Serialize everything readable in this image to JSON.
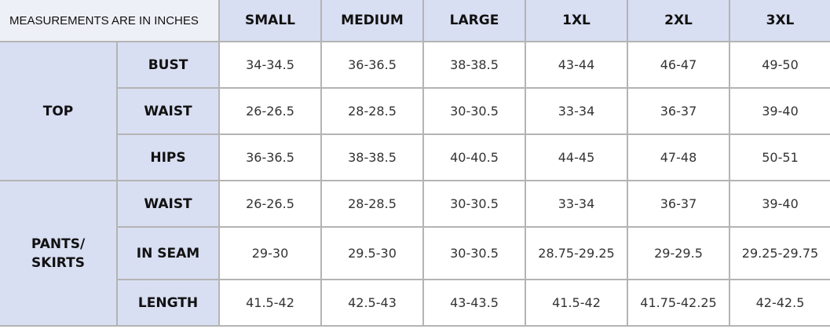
{
  "table": {
    "corner_label": "MEASUREMENTS ARE IN INCHES",
    "sizes": [
      "SMALL",
      "MEDIUM",
      "LARGE",
      "1XL",
      "2XL",
      "3XL"
    ],
    "groups": [
      {
        "name": "TOP",
        "rows": [
          {
            "label": "BUST",
            "values": [
              "34-34.5",
              "36-36.5",
              "38-38.5",
              "43-44",
              "46-47",
              "49-50"
            ]
          },
          {
            "label": "WAIST",
            "values": [
              "26-26.5",
              "28-28.5",
              "30-30.5",
              "33-34",
              "36-37",
              "39-40"
            ]
          },
          {
            "label": "HIPS",
            "values": [
              "36-36.5",
              "38-38.5",
              "40-40.5",
              "44-45",
              "47-48",
              "50-51"
            ]
          }
        ]
      },
      {
        "name": "PANTS/ SKIRTS",
        "name_lines": [
          "PANTS/",
          "SKIRTS"
        ],
        "rows": [
          {
            "label": "WAIST",
            "values": [
              "26-26.5",
              "28-28.5",
              "30-30.5",
              "33-34",
              "36-37",
              "39-40"
            ]
          },
          {
            "label": "IN SEAM",
            "values": [
              "29-30",
              "29.5-30",
              "30-30.5",
              "28.75-29.25",
              "29-29.5",
              "29.25-29.75"
            ]
          },
          {
            "label": "LENGTH",
            "values": [
              "41.5-42",
              "42.5-43",
              "43-43.5",
              "41.5-42",
              "41.75-42.25",
              "42-42.5"
            ]
          }
        ]
      }
    ]
  },
  "colors": {
    "header_bg": "#d9dff2",
    "corner_bg": "#eef0f7",
    "border": "#b4b4b4"
  }
}
